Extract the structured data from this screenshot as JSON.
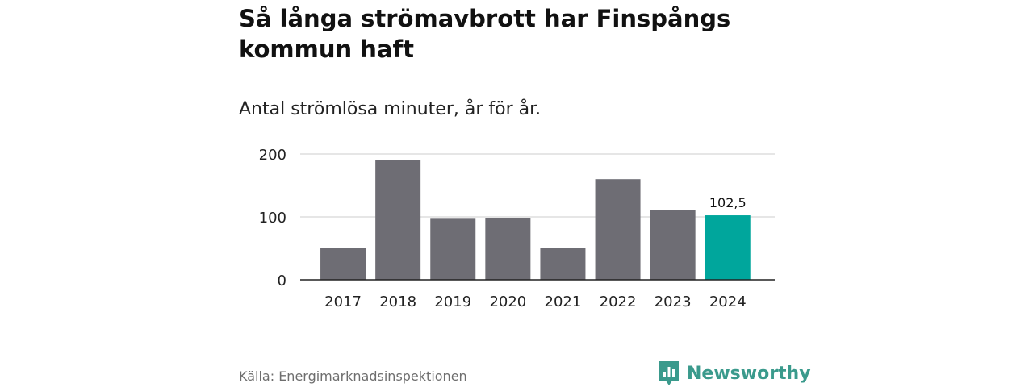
{
  "header": {
    "title": "Så långa strömavbrott har Finspångs kommun haft",
    "subtitle": "Antal strömlösa minuter, år för år."
  },
  "footer": {
    "source": "Källa: Energimarknadsinspektionen",
    "brand": "Newsworthy"
  },
  "colors": {
    "bar": "#6e6d74",
    "highlight": "#00a69c",
    "grid": "#dddddd",
    "axis": "#222222",
    "brand": "#3a9a8c"
  },
  "chart_data": {
    "type": "bar",
    "title": "Så långa strömavbrott har Finspångs kommun haft",
    "subtitle": "Antal strömlösa minuter, år för år.",
    "xlabel": "",
    "ylabel": "",
    "categories": [
      "2017",
      "2018",
      "2019",
      "2020",
      "2021",
      "2022",
      "2023",
      "2024"
    ],
    "values": [
      51,
      190,
      97,
      98,
      51,
      160,
      111,
      102.5
    ],
    "ylim": [
      0,
      200
    ],
    "yticks": [
      0,
      100,
      200
    ],
    "highlight_index": 7,
    "annotations": [
      {
        "category": "2024",
        "label": "102,5"
      }
    ]
  }
}
